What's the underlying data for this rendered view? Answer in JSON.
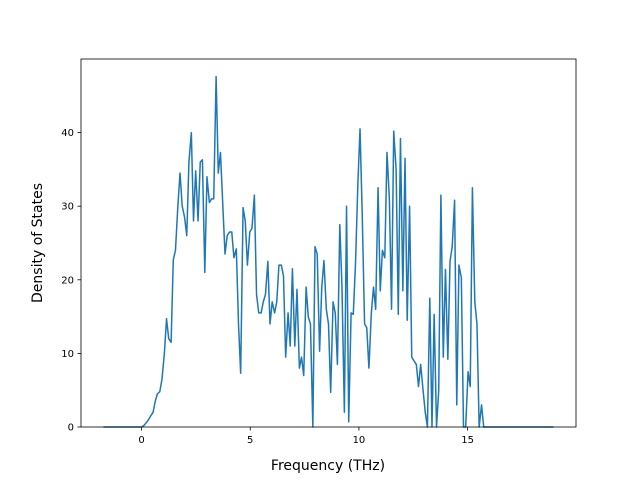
{
  "chart_data": {
    "type": "line",
    "x_label": "Frequency (THz)",
    "y_label": "Density of States",
    "color": "#1f77b4",
    "x": [
      -1.75,
      0.01,
      0.11,
      0.22,
      0.32,
      0.42,
      0.53,
      0.63,
      0.73,
      0.84,
      0.94,
      1.05,
      1.15,
      1.25,
      1.36,
      1.46,
      1.56,
      1.67,
      1.77,
      1.87,
      1.98,
      2.08,
      2.18,
      2.29,
      2.39,
      2.49,
      2.6,
      2.7,
      2.8,
      2.91,
      3.01,
      3.12,
      3.22,
      3.32,
      3.43,
      3.53,
      3.63,
      3.74,
      3.84,
      3.94,
      4.05,
      4.15,
      4.25,
      4.36,
      4.46,
      4.56,
      4.67,
      4.77,
      4.87,
      4.98,
      5.08,
      5.19,
      5.29,
      5.39,
      5.5,
      5.6,
      5.7,
      5.81,
      5.91,
      6.01,
      6.12,
      6.22,
      6.32,
      6.43,
      6.53,
      6.63,
      6.74,
      6.84,
      6.94,
      7.05,
      7.15,
      7.26,
      7.36,
      7.46,
      7.57,
      7.67,
      7.77,
      7.88,
      7.98,
      8.08,
      8.19,
      8.29,
      8.39,
      8.5,
      8.6,
      8.7,
      8.81,
      8.91,
      9.01,
      9.12,
      9.22,
      9.33,
      9.43,
      9.53,
      9.64,
      9.74,
      9.84,
      9.95,
      10.05,
      10.15,
      10.26,
      10.36,
      10.46,
      10.57,
      10.67,
      10.77,
      10.88,
      10.98,
      11.08,
      11.19,
      11.29,
      11.4,
      11.5,
      11.6,
      11.71,
      11.81,
      11.91,
      12.02,
      12.12,
      12.22,
      12.33,
      12.43,
      12.53,
      12.64,
      12.74,
      12.84,
      12.95,
      13.05,
      13.15,
      13.26,
      13.36,
      13.46,
      13.57,
      13.67,
      13.77,
      13.88,
      13.98,
      14.09,
      14.19,
      14.29,
      14.4,
      14.5,
      14.6,
      14.71,
      14.81,
      14.91,
      15.02,
      15.12,
      15.22,
      15.33,
      15.43,
      15.53,
      15.64,
      15.74,
      15.84,
      18.95
    ],
    "values": [
      0,
      0,
      0.2,
      0.6,
      1,
      1.5,
      2,
      3.5,
      4.5,
      4.8,
      6.5,
      10,
      14.7,
      12,
      11.5,
      22.7,
      24,
      30,
      34.5,
      30,
      28.5,
      26,
      36,
      40,
      28,
      34.8,
      28,
      36,
      36.3,
      21,
      34,
      30.5,
      31,
      31,
      47.6,
      34.5,
      37.3,
      30,
      23.5,
      26,
      26.5,
      26.5,
      23,
      24.2,
      14,
      7.3,
      29.8,
      28,
      22,
      26.5,
      27,
      31.5,
      18,
      15.5,
      15.5,
      17,
      18,
      22.5,
      14,
      17,
      15.5,
      17,
      22,
      22,
      20.5,
      9.5,
      15.5,
      11,
      21.5,
      11,
      18.7,
      8,
      9.5,
      7,
      19,
      15,
      14,
      0,
      24.5,
      23.5,
      10.3,
      19,
      22.6,
      16,
      14,
      4.7,
      17,
      15.5,
      8.5,
      27.5,
      19,
      2,
      30,
      0.7,
      15.5,
      15.3,
      22,
      33,
      40.5,
      29,
      14,
      13.5,
      8,
      15.5,
      19,
      16,
      32.5,
      18.5,
      24,
      23,
      37.3,
      31,
      16,
      40.2,
      35,
      15.3,
      39.2,
      18.5,
      36.5,
      14.5,
      30,
      9.5,
      9,
      8.5,
      5.5,
      8.5,
      5,
      2,
      0,
      17.5,
      0,
      15.3,
      0,
      5,
      31.5,
      9.5,
      21.4,
      9.2,
      22.5,
      24.5,
      30.8,
      3,
      22,
      20.3,
      0,
      0,
      7.5,
      5.5,
      32.5,
      17,
      14,
      0,
      3,
      0,
      0,
      0
    ],
    "xlim": [
      -2.785,
      19.985
    ],
    "ylim": [
      0,
      50
    ],
    "xticks": [
      0,
      5,
      10,
      15
    ],
    "yticks": [
      0,
      10,
      20,
      30,
      40
    ]
  }
}
